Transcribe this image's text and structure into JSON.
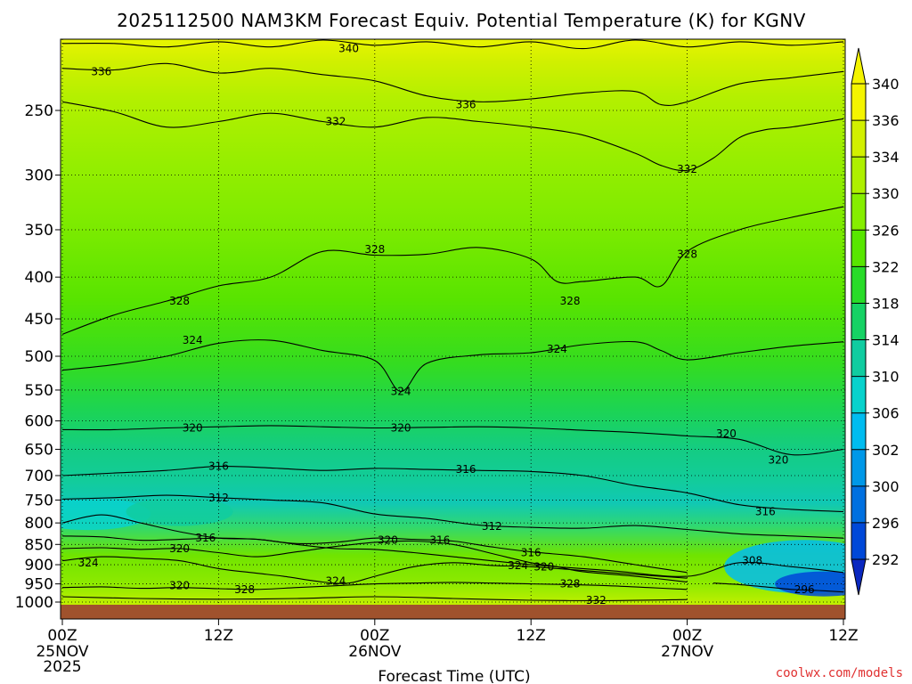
{
  "chart_data": {
    "type": "heatmap",
    "title": "2025112500 NAM3KM Forecast Equiv. Potential Temperature (K) for KGNV",
    "xlabel": "Forecast Time (UTC)",
    "ylabel": "",
    "x_ticks": [
      {
        "h": 0,
        "label": "00Z",
        "date": "25NOV",
        "year": "2025"
      },
      {
        "h": 12,
        "label": "12Z",
        "date": "",
        "year": ""
      },
      {
        "h": 24,
        "label": "00Z",
        "date": "26NOV",
        "year": ""
      },
      {
        "h": 36,
        "label": "12Z",
        "date": "",
        "year": ""
      },
      {
        "h": 48,
        "label": "00Z",
        "date": "27NOV",
        "year": ""
      },
      {
        "h": 60,
        "label": "12Z",
        "date": "",
        "year": ""
      }
    ],
    "xlim": [
      0,
      60
    ],
    "y_ticks": [
      250,
      300,
      350,
      400,
      450,
      500,
      550,
      600,
      650,
      700,
      750,
      800,
      850,
      900,
      950,
      1000
    ],
    "ylim": [
      1010,
      200
    ],
    "y_log": true,
    "grid": true,
    "colorbar": {
      "labels": [
        340,
        336,
        334,
        330,
        326,
        322,
        318,
        314,
        310,
        306,
        302,
        300,
        296,
        292
      ],
      "colors": [
        "#f4f400",
        "#d2f000",
        "#aef000",
        "#86ee00",
        "#58e600",
        "#28dc28",
        "#16d264",
        "#10cca0",
        "#08d2cc",
        "#00bcf0",
        "#0098e8",
        "#0070e0",
        "#0048d8",
        "#0a28c0"
      ]
    },
    "contour_lines": [
      {
        "value": 340,
        "label_at": [
          [
            22,
            210
          ]
        ],
        "points": [
          [
            0,
            207
          ],
          [
            4,
            207
          ],
          [
            8,
            209
          ],
          [
            12,
            206
          ],
          [
            16,
            209
          ],
          [
            20,
            205
          ],
          [
            24,
            208
          ],
          [
            28,
            206
          ],
          [
            32,
            209
          ],
          [
            36,
            206
          ],
          [
            40,
            210
          ],
          [
            44,
            205
          ],
          [
            48,
            209
          ],
          [
            52,
            206
          ],
          [
            56,
            208
          ],
          [
            60,
            206
          ]
        ]
      },
      {
        "value": 336,
        "label_at": [
          [
            3,
            224
          ],
          [
            31,
            246
          ]
        ],
        "points": [
          [
            0,
            222
          ],
          [
            4,
            223
          ],
          [
            8,
            219
          ],
          [
            12,
            225
          ],
          [
            16,
            222
          ],
          [
            20,
            226
          ],
          [
            24,
            230
          ],
          [
            28,
            240
          ],
          [
            32,
            244
          ],
          [
            36,
            242
          ],
          [
            40,
            238
          ],
          [
            44,
            237
          ],
          [
            46,
            246
          ],
          [
            48,
            244
          ],
          [
            52,
            232
          ],
          [
            56,
            228
          ],
          [
            60,
            224
          ]
        ]
      },
      {
        "value": 332,
        "label_at": [
          [
            21,
            258
          ],
          [
            48,
            295
          ]
        ],
        "points": [
          [
            0,
            244
          ],
          [
            4,
            251
          ],
          [
            8,
            262
          ],
          [
            12,
            258
          ],
          [
            16,
            252
          ],
          [
            20,
            258
          ],
          [
            24,
            262
          ],
          [
            28,
            255
          ],
          [
            32,
            258
          ],
          [
            36,
            262
          ],
          [
            40,
            268
          ],
          [
            44,
            282
          ],
          [
            46,
            292
          ],
          [
            48,
            296
          ],
          [
            50,
            286
          ],
          [
            52,
            270
          ],
          [
            54,
            264
          ],
          [
            56,
            262
          ],
          [
            60,
            256
          ]
        ]
      },
      {
        "value": 328,
        "label_at": [
          [
            9,
            428
          ],
          [
            24,
            370
          ],
          [
            39,
            428
          ],
          [
            48,
            375
          ]
        ],
        "points": [
          [
            0,
            470
          ],
          [
            4,
            445
          ],
          [
            8,
            428
          ],
          [
            12,
            410
          ],
          [
            16,
            400
          ],
          [
            20,
            372
          ],
          [
            24,
            376
          ],
          [
            28,
            375
          ],
          [
            32,
            368
          ],
          [
            36,
            380
          ],
          [
            38,
            405
          ],
          [
            40,
            405
          ],
          [
            44,
            400
          ],
          [
            46,
            410
          ],
          [
            48,
            372
          ],
          [
            52,
            350
          ],
          [
            56,
            338
          ],
          [
            60,
            328
          ]
        ]
      },
      {
        "value": 324,
        "label_at": [
          [
            10,
            478
          ],
          [
            26,
            552
          ],
          [
            38,
            490
          ]
        ],
        "points": [
          [
            0,
            520
          ],
          [
            4,
            512
          ],
          [
            8,
            500
          ],
          [
            12,
            482
          ],
          [
            16,
            478
          ],
          [
            20,
            492
          ],
          [
            24,
            506
          ],
          [
            26,
            552
          ],
          [
            28,
            510
          ],
          [
            32,
            498
          ],
          [
            36,
            495
          ],
          [
            40,
            484
          ],
          [
            44,
            480
          ],
          [
            46,
            492
          ],
          [
            48,
            505
          ],
          [
            52,
            495
          ],
          [
            56,
            486
          ],
          [
            60,
            480
          ]
        ]
      },
      {
        "value": 320,
        "label_at": [
          [
            10,
            612
          ],
          [
            26,
            612
          ],
          [
            51,
            622
          ],
          [
            55,
            670
          ]
        ],
        "points": [
          [
            0,
            615
          ],
          [
            4,
            615
          ],
          [
            8,
            612
          ],
          [
            12,
            610
          ],
          [
            16,
            608
          ],
          [
            20,
            610
          ],
          [
            24,
            612
          ],
          [
            28,
            611
          ],
          [
            32,
            610
          ],
          [
            36,
            612
          ],
          [
            40,
            616
          ],
          [
            44,
            620
          ],
          [
            48,
            626
          ],
          [
            52,
            632
          ],
          [
            56,
            660
          ],
          [
            60,
            650
          ]
        ]
      },
      {
        "value": 316,
        "label_at": [
          [
            12,
            682
          ],
          [
            31,
            688
          ],
          [
            54,
            775
          ]
        ],
        "points": [
          [
            0,
            700
          ],
          [
            4,
            695
          ],
          [
            8,
            690
          ],
          [
            12,
            682
          ],
          [
            16,
            685
          ],
          [
            20,
            690
          ],
          [
            24,
            686
          ],
          [
            28,
            688
          ],
          [
            32,
            690
          ],
          [
            36,
            692
          ],
          [
            40,
            700
          ],
          [
            44,
            720
          ],
          [
            48,
            735
          ],
          [
            52,
            760
          ],
          [
            56,
            770
          ],
          [
            60,
            775
          ]
        ]
      },
      {
        "value": 312,
        "label_at": [
          [
            12,
            745
          ],
          [
            33,
            808
          ]
        ],
        "points": [
          [
            0,
            748
          ],
          [
            4,
            745
          ],
          [
            8,
            740
          ],
          [
            12,
            745
          ],
          [
            16,
            750
          ],
          [
            20,
            756
          ],
          [
            24,
            780
          ],
          [
            28,
            790
          ],
          [
            32,
            805
          ],
          [
            36,
            810
          ],
          [
            40,
            812
          ],
          [
            44,
            806
          ],
          [
            48,
            815
          ],
          [
            52,
            825
          ],
          [
            56,
            830
          ],
          [
            60,
            835
          ]
        ]
      },
      {
        "value": 308,
        "label_at": [
          [
            53,
            890
          ]
        ],
        "points": [
          [
            0,
            800
          ],
          [
            3,
            782
          ],
          [
            6,
            800
          ],
          [
            9,
            820
          ],
          [
            12,
            835
          ],
          [
            15,
            838
          ],
          [
            18,
            850
          ],
          [
            21,
            860
          ],
          [
            24,
            862
          ],
          [
            27,
            870
          ],
          [
            30,
            880
          ],
          [
            36,
            900
          ],
          [
            42,
            915
          ],
          [
            48,
            930
          ],
          [
            52,
            895
          ],
          [
            56,
            905
          ],
          [
            60,
            920
          ]
        ]
      },
      {
        "value": 324,
        "label_at": [
          [
            2,
            895
          ],
          [
            21,
            943
          ],
          [
            35,
            902
          ]
        ],
        "points": [
          [
            0,
            890
          ],
          [
            3,
            880
          ],
          [
            6,
            884
          ],
          [
            9,
            890
          ],
          [
            12,
            910
          ],
          [
            15,
            922
          ],
          [
            17,
            930
          ],
          [
            20,
            945
          ],
          [
            22,
            948
          ],
          [
            24,
            930
          ],
          [
            27,
            905
          ],
          [
            30,
            895
          ],
          [
            33,
            902
          ],
          [
            36,
            905
          ],
          [
            40,
            915
          ],
          [
            44,
            925
          ],
          [
            48,
            935
          ]
        ]
      },
      {
        "value": 320,
        "label_at": [
          [
            9,
            860
          ],
          [
            9,
            955
          ],
          [
            25,
            840
          ],
          [
            37,
            905
          ]
        ],
        "points": [
          [
            0,
            860
          ],
          [
            3,
            858
          ],
          [
            6,
            862
          ],
          [
            9,
            860
          ],
          [
            12,
            870
          ],
          [
            15,
            880
          ],
          [
            18,
            868
          ],
          [
            21,
            855
          ],
          [
            24,
            845
          ],
          [
            27,
            842
          ],
          [
            30,
            850
          ],
          [
            33,
            872
          ],
          [
            36,
            895
          ],
          [
            38,
            905
          ],
          [
            40,
            918
          ],
          [
            44,
            930
          ],
          [
            48,
            945
          ]
        ]
      },
      {
        "value": 316,
        "label_at": [
          [
            11,
            835
          ],
          [
            29,
            840
          ],
          [
            36,
            870
          ]
        ],
        "points": [
          [
            0,
            830
          ],
          [
            3,
            832
          ],
          [
            6,
            840
          ],
          [
            9,
            838
          ],
          [
            12,
            835
          ],
          [
            15,
            838
          ],
          [
            18,
            848
          ],
          [
            21,
            845
          ],
          [
            24,
            835
          ],
          [
            27,
            838
          ],
          [
            30,
            842
          ],
          [
            33,
            856
          ],
          [
            36,
            868
          ],
          [
            40,
            880
          ],
          [
            44,
            900
          ],
          [
            48,
            920
          ]
        ]
      },
      {
        "value": 328,
        "label_at": [
          [
            14,
            965
          ],
          [
            39,
            950
          ]
        ],
        "points": [
          [
            0,
            960
          ],
          [
            3,
            958
          ],
          [
            6,
            962
          ],
          [
            9,
            960
          ],
          [
            12,
            963
          ],
          [
            15,
            965
          ],
          [
            18,
            960
          ],
          [
            21,
            955
          ],
          [
            24,
            950
          ],
          [
            27,
            948
          ],
          [
            30,
            946
          ],
          [
            33,
            948
          ],
          [
            36,
            950
          ],
          [
            39,
            952
          ],
          [
            42,
            955
          ],
          [
            45,
            960
          ],
          [
            48,
            965
          ]
        ]
      },
      {
        "value": 332,
        "label_at": [
          [
            41,
            995
          ]
        ],
        "points": [
          [
            0,
            985
          ],
          [
            6,
            990
          ],
          [
            12,
            992
          ],
          [
            18,
            990
          ],
          [
            24,
            985
          ],
          [
            30,
            990
          ],
          [
            36,
            995
          ],
          [
            42,
            996
          ],
          [
            48,
            993
          ]
        ]
      },
      {
        "value": 296,
        "label_at": [
          [
            57,
            965
          ]
        ],
        "points": [
          [
            50,
            948
          ],
          [
            52,
            952
          ],
          [
            54,
            958
          ],
          [
            56,
            965
          ],
          [
            58,
            968
          ],
          [
            60,
            972
          ]
        ]
      }
    ]
  },
  "watermark": "coolwx.com/models",
  "ground_color": "#a0522d",
  "line_color": "#000000"
}
